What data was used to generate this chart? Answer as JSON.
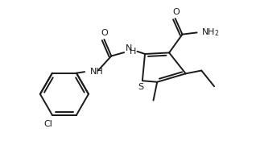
{
  "background_color": "#ffffff",
  "line_color": "#1a1a1a",
  "line_width": 1.4,
  "font_size": 8.0,
  "figsize": [
    3.18,
    2.07
  ],
  "dpi": 100,
  "xlim": [
    -0.5,
    9.5
  ],
  "ylim": [
    0.0,
    6.5
  ]
}
